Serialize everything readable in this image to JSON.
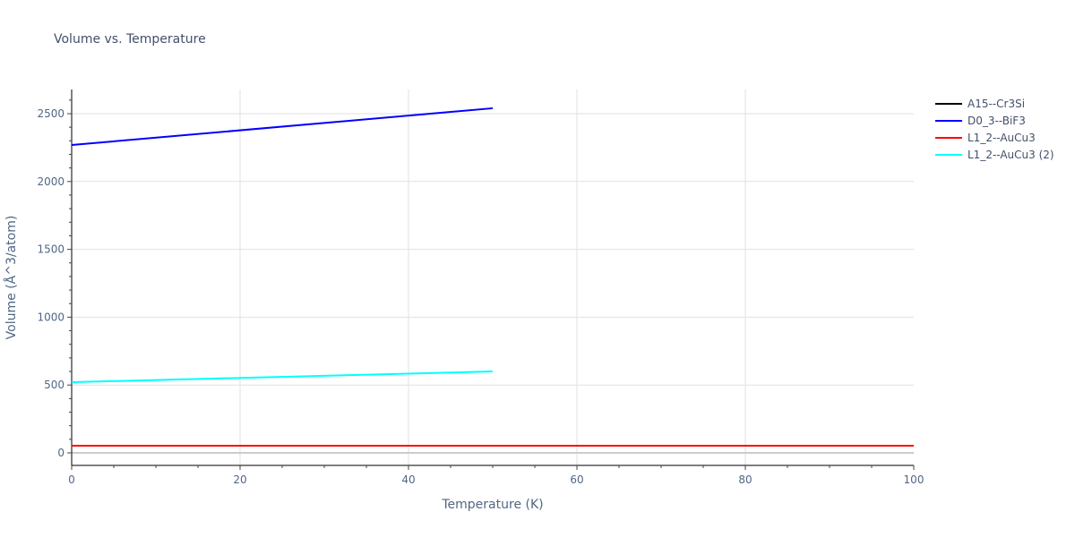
{
  "title": "Volume vs. Temperature",
  "legend": [
    {
      "label": "A15--Cr3Si",
      "color": "#000000"
    },
    {
      "label": "D0_3--BiF3",
      "color": "#0000ff"
    },
    {
      "label": "L1_2--AuCu3",
      "color": "#ff0000"
    },
    {
      "label": "L1_2--AuCu3 (2)",
      "color": "#00ffff"
    }
  ],
  "axes": {
    "xlabel": "Temperature (K)",
    "ylabel": "Volume (Å^3/atom)",
    "xticks": [
      "0",
      "20",
      "40",
      "60",
      "80",
      "100"
    ],
    "yticks": [
      "0",
      "500",
      "1000",
      "1500",
      "2000",
      "2500"
    ]
  },
  "chart_data": {
    "type": "line",
    "title": "Volume vs. Temperature",
    "xlabel": "Temperature (K)",
    "ylabel": "Volume (Å^3/atom)",
    "xlim": [
      0,
      100
    ],
    "ylim": [
      -100,
      2680
    ],
    "grid": true,
    "legend_position": "right",
    "series": [
      {
        "name": "A15--Cr3Si",
        "color": "#000000",
        "x": [
          0,
          100
        ],
        "y": [
          53,
          53
        ]
      },
      {
        "name": "D0_3--BiF3",
        "color": "#0000ff",
        "x": [
          0,
          50
        ],
        "y": [
          2269,
          2540
        ]
      },
      {
        "name": "L1_2--AuCu3",
        "color": "#ff0000",
        "x": [
          0,
          100
        ],
        "y": [
          53,
          53
        ]
      },
      {
        "name": "L1_2--AuCu3 (2)",
        "color": "#00ffff",
        "x": [
          0,
          50
        ],
        "y": [
          521,
          600
        ]
      }
    ]
  }
}
